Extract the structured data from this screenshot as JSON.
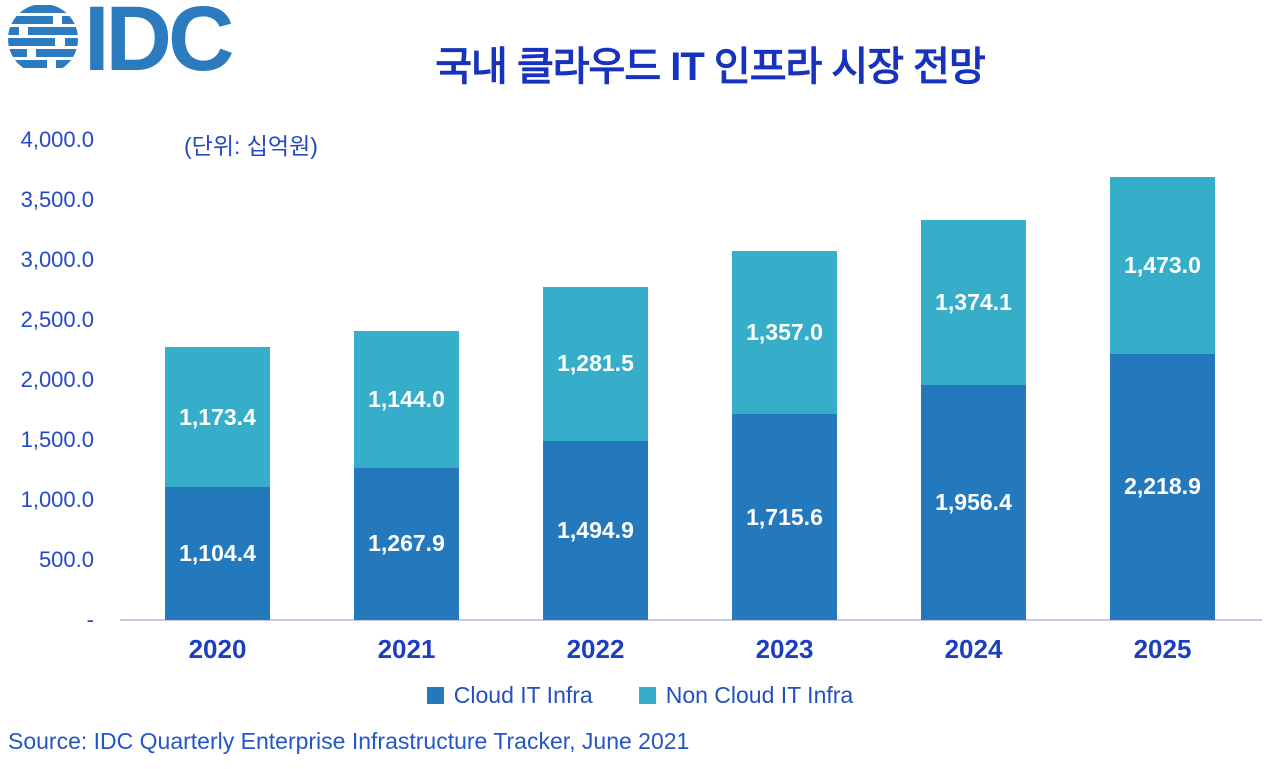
{
  "logo": {
    "text": "IDC"
  },
  "header": {
    "title": "국내 클라우드 IT 인프라 시장 전망",
    "unit_note": "(단위: 십억원)"
  },
  "source": "Source: IDC Quarterly Enterprise Infrastructure Tracker, June 2021",
  "colors": {
    "cloud_bar": "#2479BD",
    "non_cloud_bar": "#36AEC9",
    "title_text": "#1733BE",
    "axis_text": "#2449C4",
    "baseline": "#CBC7E8",
    "logo_blue": "#2B7BBE"
  },
  "chart_data": {
    "type": "bar",
    "stacked": true,
    "title": "국내 클라우드 IT 인프라 시장 전망",
    "unit_label": "(단위: 십억원)",
    "xlabel": "",
    "ylabel": "",
    "categories": [
      "2020",
      "2021",
      "2022",
      "2023",
      "2024",
      "2025"
    ],
    "series": [
      {
        "name": "Cloud IT Infra",
        "color": "#2479BD",
        "values": [
          1104.4,
          1267.9,
          1494.9,
          1715.6,
          1956.4,
          2218.9
        ]
      },
      {
        "name": "Non Cloud IT Infra",
        "color": "#36AEC9",
        "values": [
          1173.4,
          1144.0,
          1281.5,
          1357.0,
          1374.1,
          1473.0
        ]
      }
    ],
    "ylim": [
      0,
      4000
    ],
    "ytick_step": 500,
    "yticks": [
      "4,000.0",
      "3,500.0",
      "3,000.0",
      "2,500.0",
      "2,000.0",
      "1,500.0",
      "1,000.0",
      "500.0",
      "-"
    ],
    "grid": false,
    "legend_position": "bottom"
  }
}
